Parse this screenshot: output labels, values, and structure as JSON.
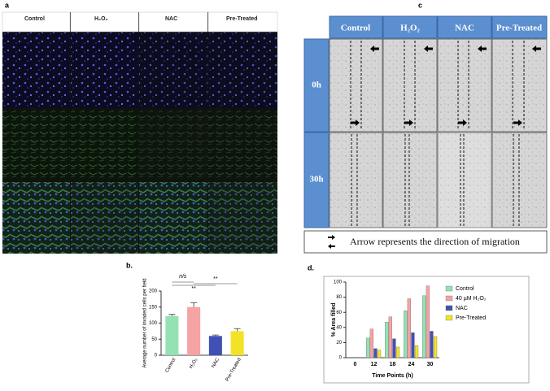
{
  "panel_a": {
    "label": "a",
    "columns": [
      "Control",
      "H₂O₂",
      "NAC",
      "Pre-Treated"
    ]
  },
  "panel_c": {
    "label": "c",
    "columns": [
      "Control",
      "H₂O₂",
      "NAC",
      "Pre-Treated"
    ],
    "rows": [
      "0h",
      "30h"
    ],
    "legend": "Arrow represents the direction of migration"
  },
  "chart_data": [
    {
      "type": "bar",
      "label": "b.",
      "ylabel": "Average number of invaded cells per field",
      "categories": [
        "Control",
        "H₂O₂",
        "NAC",
        "Pre-Treated"
      ],
      "values": [
        122,
        150,
        60,
        75
      ],
      "errors": [
        5,
        14,
        3,
        8
      ],
      "colors": [
        "#93e2b4",
        "#f5a3a3",
        "#4150b3",
        "#f2e326"
      ],
      "ylim": [
        0,
        200
      ],
      "yticks": [
        0,
        50,
        100,
        150,
        200
      ],
      "annotations": [
        "n/s",
        "**",
        "**"
      ]
    },
    {
      "type": "bar",
      "label": "d.",
      "xlabel": "Time Points (h)",
      "ylabel": "% Area filled",
      "categories": [
        "0",
        "12",
        "18",
        "24",
        "30"
      ],
      "series": [
        {
          "name": "Control",
          "color": "#93e2b4",
          "values": [
            0,
            26,
            47,
            62,
            82
          ]
        },
        {
          "name": "40 µM H₂O₂",
          "color": "#f5a3a3",
          "values": [
            0,
            38,
            54,
            78,
            95
          ]
        },
        {
          "name": "NAC",
          "color": "#4150b3",
          "values": [
            0,
            12,
            25,
            33,
            35
          ]
        },
        {
          "name": "Pre-Treated",
          "color": "#f2e326",
          "values": [
            0,
            10,
            14,
            16,
            28
          ]
        }
      ],
      "ylim": [
        0,
        100
      ],
      "yticks": [
        0,
        20,
        40,
        60,
        80,
        100
      ],
      "legend": "right"
    }
  ]
}
